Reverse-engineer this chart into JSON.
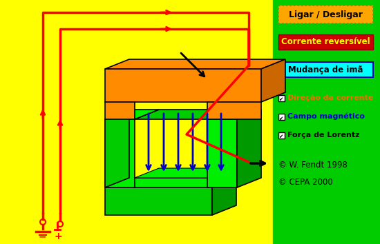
{
  "bg_color": "#FFFF00",
  "right_panel_color": "#00CC00",
  "fig_width": 5.5,
  "fig_height": 3.54,
  "dpi": 100,
  "button1_text": "Ligar / Desligar",
  "button1_bg": "#FFA500",
  "button1_border": "#888800",
  "button2_text": "Corrente reversível",
  "button2_bg": "#CC0000",
  "button2_text_color": "#FFFF00",
  "button3_text": "Mudança de imã",
  "button3_bg": "#00FFFF",
  "button3_border": "#0000AA",
  "checkbox1_text": "Direção da corrente",
  "checkbox1_color": "#FF6600",
  "checkbox2_text": "Campo magnético",
  "checkbox2_color": "#0000CC",
  "checkbox3_text": "Força de Lorentz",
  "checkbox3_color": "#000000",
  "copyright1": "© W. Fendt 1998",
  "copyright2": "© CEPA 2000",
  "orange_light": "#FF8C00",
  "orange_dark": "#CC6600",
  "orange_side": "#AA4400",
  "green_light": "#00EE00",
  "green_mid": "#00CC00",
  "green_dark": "#009900",
  "wire_color": "#FF0000",
  "arrow_color": "#0000CC",
  "black_color": "#000000"
}
